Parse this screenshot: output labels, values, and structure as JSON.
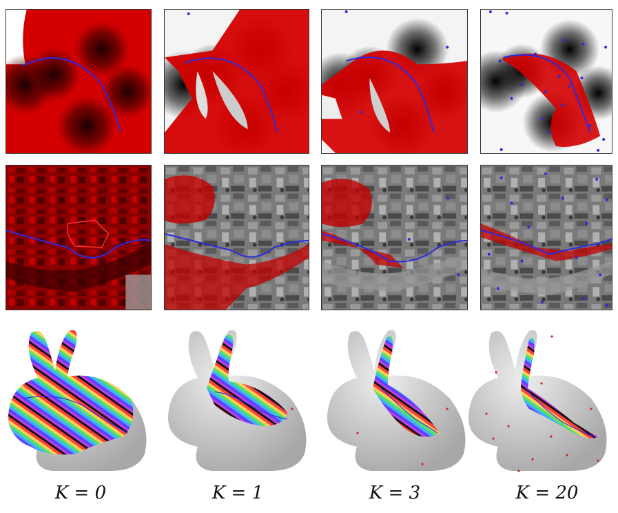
{
  "figure": {
    "columns": [
      {
        "label": "K = 0"
      },
      {
        "label": "K = 1"
      },
      {
        "label": "K = 3"
      },
      {
        "label": "K = 20"
      }
    ],
    "rows": [
      "synthetic distance map",
      "aerial river image",
      "bunny mesh"
    ],
    "colors": {
      "region": "#d40000",
      "curve": "#2a2ae0",
      "point": "#2a2ae0",
      "mesh_point": "#d82020",
      "mesh": "#d2d2d2"
    }
  }
}
